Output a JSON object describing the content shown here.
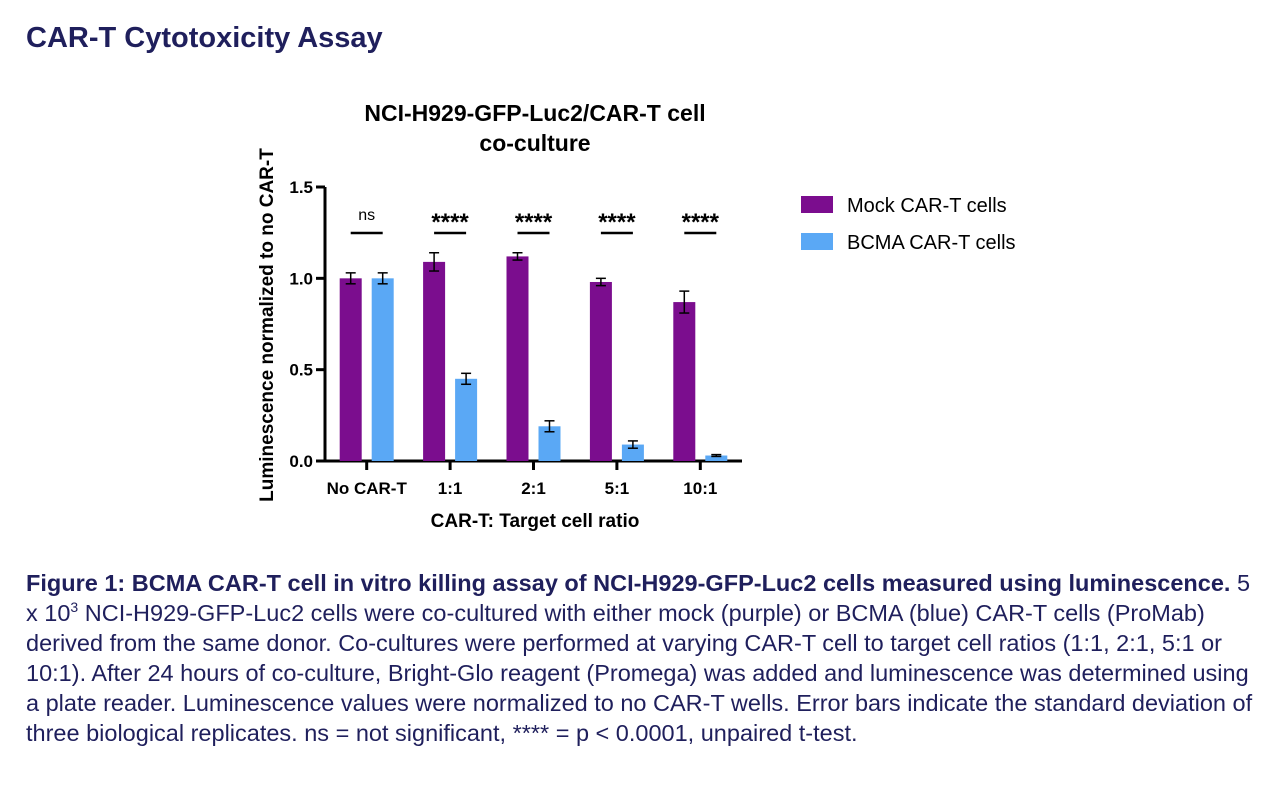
{
  "page": {
    "heading": "CAR-T Cytotoxicity Assay"
  },
  "chart_data": {
    "type": "bar",
    "title_line1": "NCI-H929-GFP-Luc2/CAR-T cell",
    "title_line2": "co-culture",
    "xlabel": "CAR-T: Target cell ratio",
    "ylabel": "Luminescence normalized to no CAR-T",
    "ylim": [
      0,
      1.5
    ],
    "yticks": [
      "0.0",
      "0.5",
      "1.0",
      "1.5"
    ],
    "grid": false,
    "legend_position": "right",
    "categories": [
      "No CAR-T",
      "1:1",
      "2:1",
      "5:1",
      "10:1"
    ],
    "series": [
      {
        "name": "Mock CAR-T cells",
        "color": "#7b0d8e",
        "values": [
          1.0,
          1.09,
          1.12,
          0.98,
          0.87
        ],
        "errors": [
          0.03,
          0.05,
          0.02,
          0.02,
          0.06
        ]
      },
      {
        "name": "BCMA CAR-T cells",
        "color": "#5aa8f5",
        "values": [
          1.0,
          0.45,
          0.19,
          0.09,
          0.03
        ],
        "errors": [
          0.03,
          0.03,
          0.03,
          0.02,
          0.005
        ]
      }
    ],
    "significance": [
      "ns",
      "****",
      "****",
      "****",
      "****"
    ]
  },
  "caption": {
    "bold": "Figure 1: BCMA CAR-T cell in vitro killing assay of NCI-H929-GFP-Luc2 cells measured using luminescence.",
    "text_before_sup": " 5 x 10",
    "sup": "3",
    "text_after_sup": " NCI-H929-GFP-Luc2 cells were co-cultured with either mock (purple) or BCMA (blue) CAR-T cells (ProMab) derived from the same donor. Co-cultures were performed at varying CAR-T cell to target cell ratios (1:1, 2:1, 5:1 or 10:1). After 24 hours of co-culture, Bright-Glo reagent (Promega) was added and luminescence was determined using a plate reader. Luminescence values were normalized to no CAR-T wells. Error bars indicate the standard deviation of three biological replicates. ns = not significant, **** = p < 0.0001, unpaired t-test."
  }
}
